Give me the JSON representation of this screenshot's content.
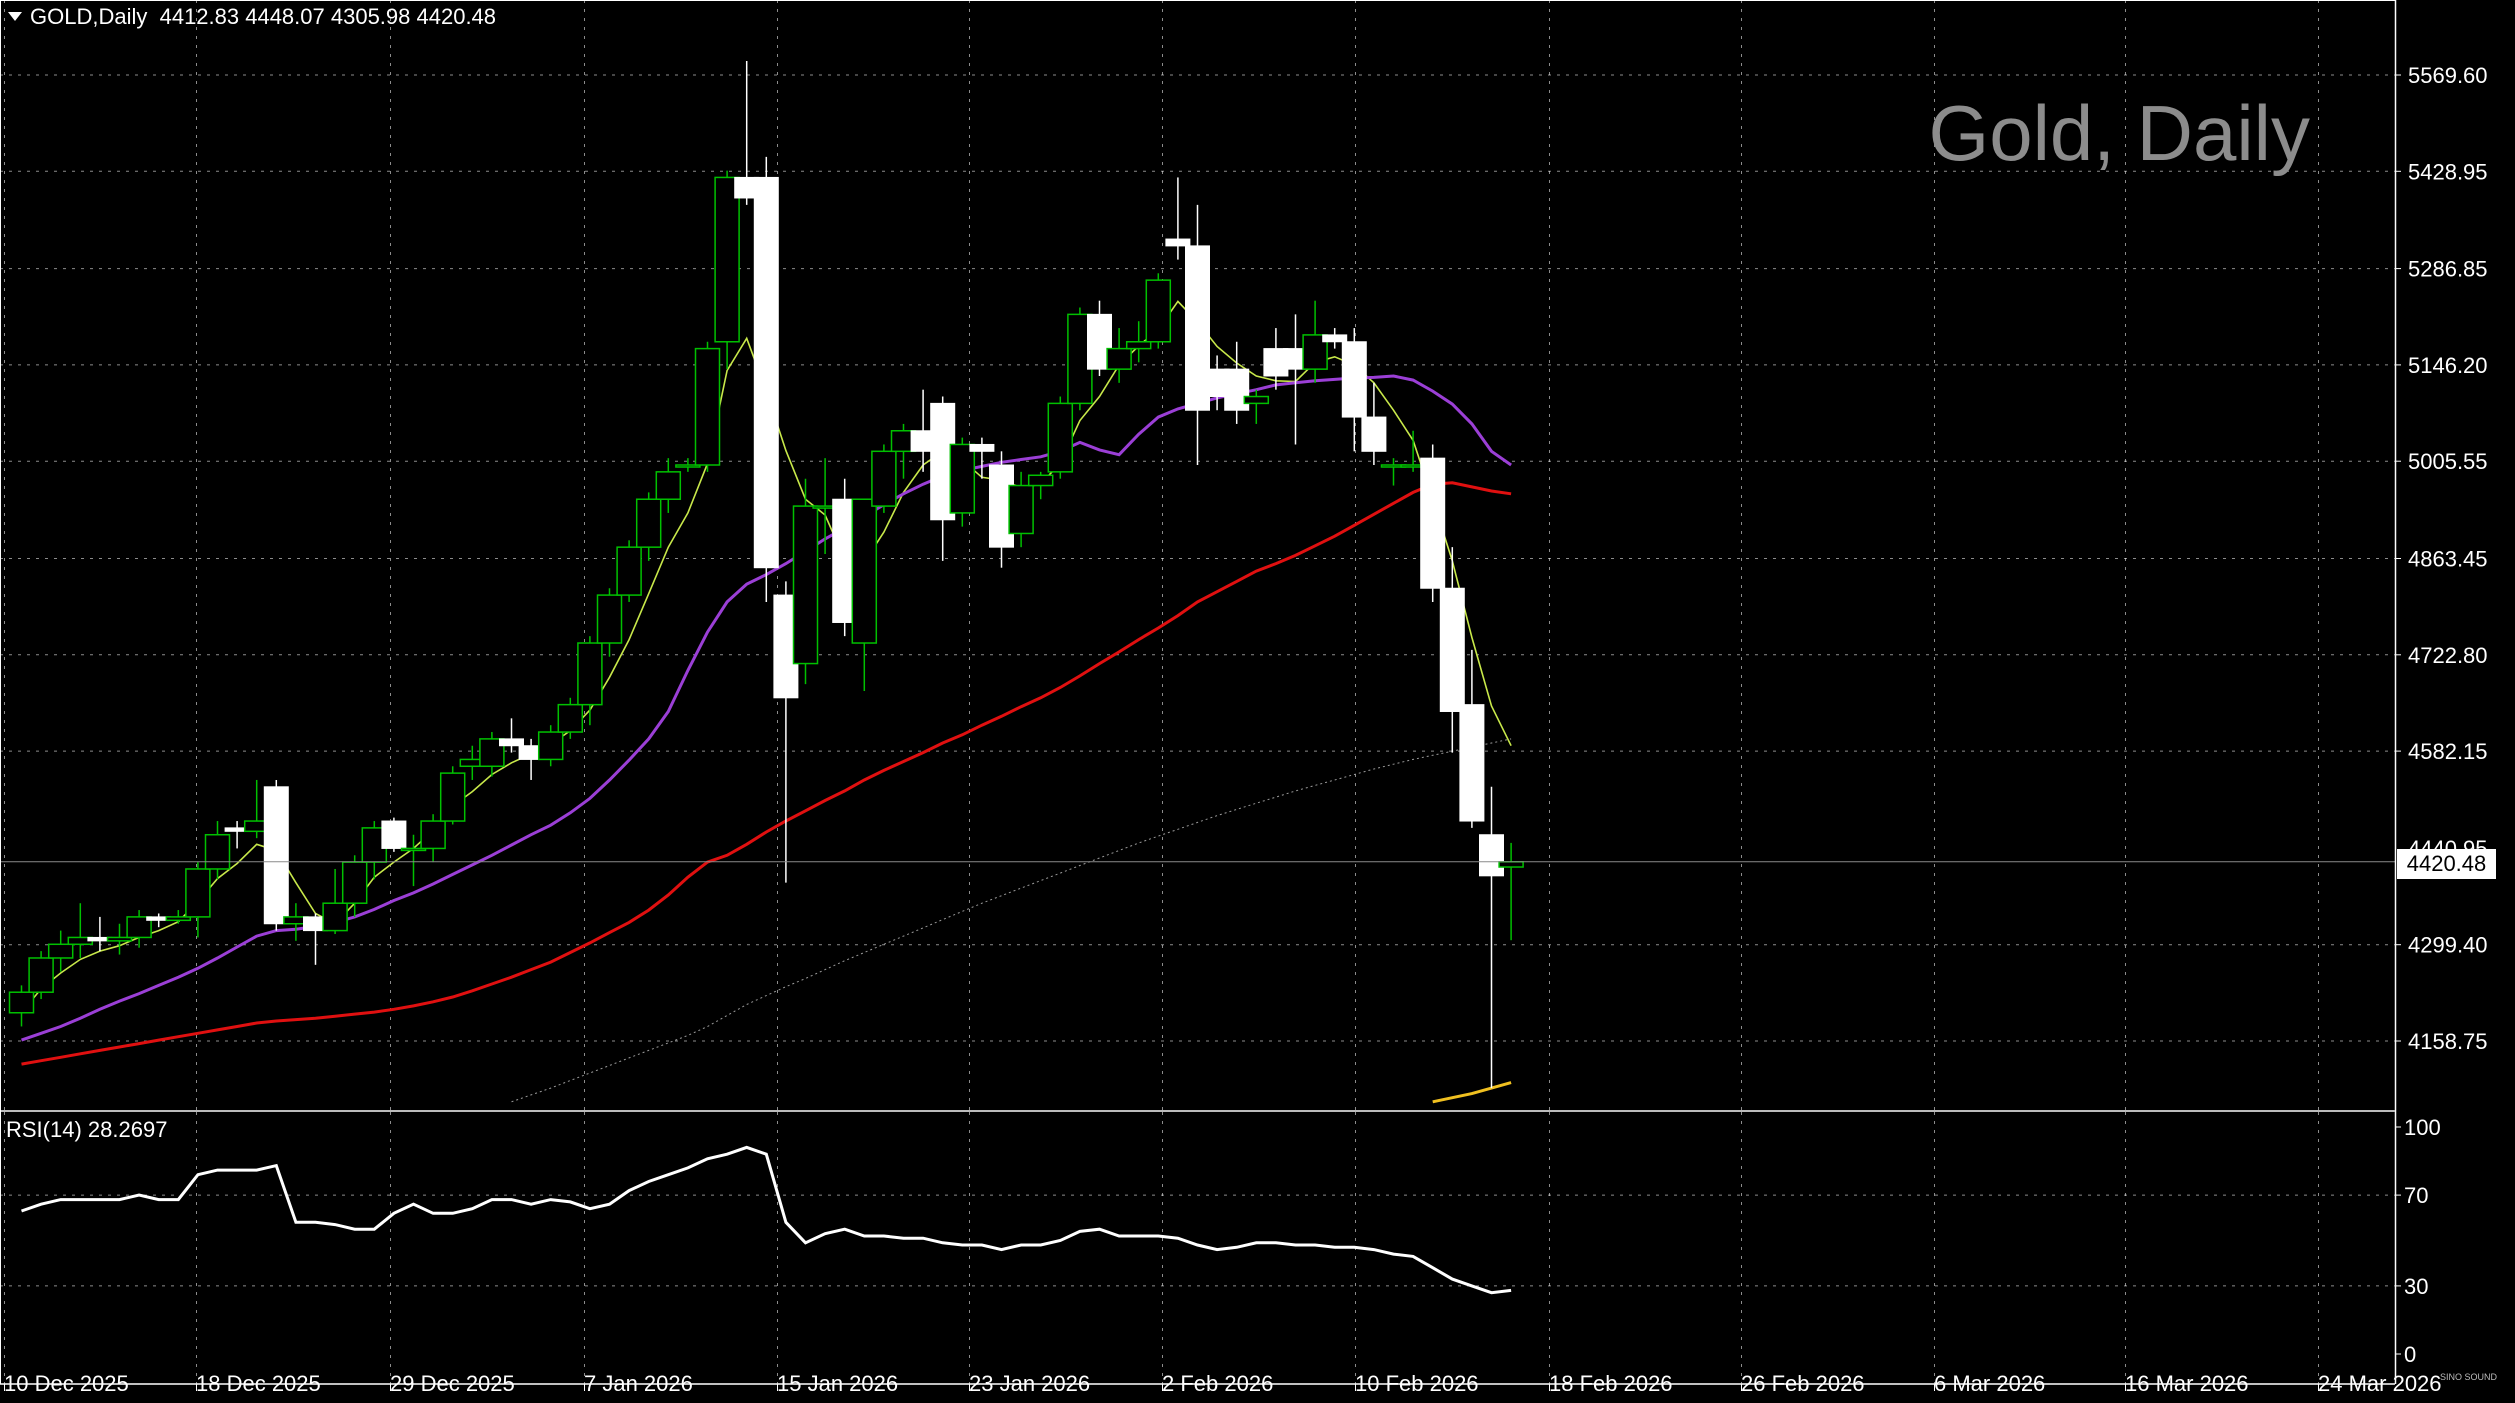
{
  "header": {
    "symbol": "GOLD,Daily",
    "ohlc": "4412.83 4448.07 4305.98 4420.48"
  },
  "watermark": "Gold, Daily",
  "rsi_label": "RSI(14) 28.2697",
  "last_price_tag": "4420.48",
  "brand_text": "SINO SOUND",
  "colors": {
    "background": "#000000",
    "bull_candle": "#00c000",
    "bear_candle": "#ffffff",
    "ma_fast": "#c8e84a",
    "ma_mid": "#9b3fd6",
    "ma_slow": "#e01010",
    "ma_long": "#9a9a9a",
    "ma_yellow": "#f0c020",
    "rsi": "#ffffff",
    "grid": "#ffffff"
  },
  "chart_data": [
    {
      "type": "candlestick",
      "title": "GOLD,Daily",
      "y_ticks": [
        "5569.60",
        "5428.95",
        "5286.85",
        "5146.20",
        "5005.55",
        "4863.45",
        "4722.80",
        "4582.15",
        "4299.40",
        "4158.75"
      ],
      "hidden_tick": "4440.95",
      "x_ticks": [
        "10 Dec 2025",
        "18 Dec 2025",
        "29 Dec 2025",
        "7 Jan 2026",
        "15 Jan 2026",
        "23 Jan 2026",
        "2 Feb 2026",
        "10 Feb 2026",
        "18 Feb 2026",
        "26 Feb 2026",
        "6 Mar 2026",
        "16 Mar 2026",
        "24 Mar 2026"
      ],
      "ylim": [
        4070,
        5630
      ],
      "grid": true,
      "candles": [
        {
          "o": 4200,
          "h": 4240,
          "l": 4180,
          "c": 4230
        },
        {
          "o": 4230,
          "h": 4290,
          "l": 4220,
          "c": 4280
        },
        {
          "o": 4280,
          "h": 4320,
          "l": 4260,
          "c": 4300
        },
        {
          "o": 4300,
          "h": 4360,
          "l": 4280,
          "c": 4310
        },
        {
          "o": 4310,
          "h": 4340,
          "l": 4290,
          "c": 4305
        },
        {
          "o": 4305,
          "h": 4330,
          "l": 4285,
          "c": 4310
        },
        {
          "o": 4310,
          "h": 4350,
          "l": 4295,
          "c": 4340
        },
        {
          "o": 4340,
          "h": 4345,
          "l": 4325,
          "c": 4335
        },
        {
          "o": 4335,
          "h": 4350,
          "l": 4330,
          "c": 4340
        },
        {
          "o": 4340,
          "h": 4420,
          "l": 4310,
          "c": 4410
        },
        {
          "o": 4410,
          "h": 4480,
          "l": 4395,
          "c": 4460
        },
        {
          "o": 4470,
          "h": 4480,
          "l": 4440,
          "c": 4465
        },
        {
          "o": 4465,
          "h": 4540,
          "l": 4455,
          "c": 4480
        },
        {
          "o": 4530,
          "h": 4540,
          "l": 4320,
          "c": 4330
        },
        {
          "o": 4330,
          "h": 4360,
          "l": 4305,
          "c": 4340
        },
        {
          "o": 4340,
          "h": 4345,
          "l": 4270,
          "c": 4320
        },
        {
          "o": 4320,
          "h": 4410,
          "l": 4315,
          "c": 4360
        },
        {
          "o": 4360,
          "h": 4430,
          "l": 4340,
          "c": 4420
        },
        {
          "o": 4420,
          "h": 4480,
          "l": 4395,
          "c": 4470
        },
        {
          "o": 4480,
          "h": 4485,
          "l": 4435,
          "c": 4440
        },
        {
          "o": 4440,
          "h": 4460,
          "l": 4385,
          "c": 4440
        },
        {
          "o": 4440,
          "h": 4490,
          "l": 4420,
          "c": 4480
        },
        {
          "o": 4480,
          "h": 4560,
          "l": 4475,
          "c": 4550
        },
        {
          "o": 4560,
          "h": 4590,
          "l": 4540,
          "c": 4570
        },
        {
          "o": 4560,
          "h": 4610,
          "l": 4545,
          "c": 4600
        },
        {
          "o": 4600,
          "h": 4630,
          "l": 4580,
          "c": 4590
        },
        {
          "o": 4590,
          "h": 4600,
          "l": 4540,
          "c": 4570
        },
        {
          "o": 4570,
          "h": 4620,
          "l": 4560,
          "c": 4610
        },
        {
          "o": 4610,
          "h": 4660,
          "l": 4600,
          "c": 4650
        },
        {
          "o": 4650,
          "h": 4750,
          "l": 4620,
          "c": 4740
        },
        {
          "o": 4740,
          "h": 4820,
          "l": 4720,
          "c": 4810
        },
        {
          "o": 4810,
          "h": 4890,
          "l": 4800,
          "c": 4880
        },
        {
          "o": 4880,
          "h": 4960,
          "l": 4860,
          "c": 4950
        },
        {
          "o": 4950,
          "h": 5010,
          "l": 4930,
          "c": 4990
        },
        {
          "o": 5000,
          "h": 5010,
          "l": 4990,
          "c": 5000
        },
        {
          "o": 5000,
          "h": 5180,
          "l": 4990,
          "c": 5170
        },
        {
          "o": 5180,
          "h": 5430,
          "l": 5140,
          "c": 5420
        },
        {
          "o": 5420,
          "h": 5590,
          "l": 5380,
          "c": 5390
        },
        {
          "o": 5420,
          "h": 5450,
          "l": 4800,
          "c": 4850
        },
        {
          "o": 4810,
          "h": 4830,
          "l": 4390,
          "c": 4660
        },
        {
          "o": 4710,
          "h": 4980,
          "l": 4680,
          "c": 4940
        },
        {
          "o": 4940,
          "h": 5010,
          "l": 4870,
          "c": 4940
        },
        {
          "o": 4950,
          "h": 4980,
          "l": 4750,
          "c": 4770
        },
        {
          "o": 4740,
          "h": 4950,
          "l": 4670,
          "c": 4950
        },
        {
          "o": 4940,
          "h": 5030,
          "l": 4930,
          "c": 5020
        },
        {
          "o": 5020,
          "h": 5060,
          "l": 4980,
          "c": 5050
        },
        {
          "o": 5050,
          "h": 5110,
          "l": 4990,
          "c": 5020
        },
        {
          "o": 5090,
          "h": 5100,
          "l": 4860,
          "c": 4920
        },
        {
          "o": 4930,
          "h": 5040,
          "l": 4910,
          "c": 5030
        },
        {
          "o": 5030,
          "h": 5040,
          "l": 4980,
          "c": 5020
        },
        {
          "o": 5000,
          "h": 5020,
          "l": 4850,
          "c": 4880
        },
        {
          "o": 4900,
          "h": 4990,
          "l": 4880,
          "c": 4970
        },
        {
          "o": 4970,
          "h": 4990,
          "l": 4950,
          "c": 4985
        },
        {
          "o": 4990,
          "h": 5100,
          "l": 4980,
          "c": 5090
        },
        {
          "o": 5090,
          "h": 5230,
          "l": 5080,
          "c": 5220
        },
        {
          "o": 5220,
          "h": 5240,
          "l": 5130,
          "c": 5140
        },
        {
          "o": 5140,
          "h": 5200,
          "l": 5120,
          "c": 5170
        },
        {
          "o": 5170,
          "h": 5210,
          "l": 5150,
          "c": 5180
        },
        {
          "o": 5180,
          "h": 5280,
          "l": 5170,
          "c": 5270
        },
        {
          "o": 5330,
          "h": 5420,
          "l": 5300,
          "c": 5320
        },
        {
          "o": 5320,
          "h": 5380,
          "l": 5000,
          "c": 5080
        },
        {
          "o": 5140,
          "h": 5160,
          "l": 5080,
          "c": 5100
        },
        {
          "o": 5140,
          "h": 5180,
          "l": 5060,
          "c": 5080
        },
        {
          "o": 5090,
          "h": 5110,
          "l": 5060,
          "c": 5100
        },
        {
          "o": 5170,
          "h": 5200,
          "l": 5110,
          "c": 5130
        },
        {
          "o": 5170,
          "h": 5220,
          "l": 5030,
          "c": 5140
        },
        {
          "o": 5140,
          "h": 5240,
          "l": 5120,
          "c": 5190
        },
        {
          "o": 5190,
          "h": 5200,
          "l": 5170,
          "c": 5180
        },
        {
          "o": 5180,
          "h": 5200,
          "l": 5020,
          "c": 5070
        },
        {
          "o": 5070,
          "h": 5120,
          "l": 5000,
          "c": 5020
        },
        {
          "o": 5000,
          "h": 5010,
          "l": 4970,
          "c": 5000
        },
        {
          "o": 5000,
          "h": 5050,
          "l": 4990,
          "c": 5000
        },
        {
          "o": 5010,
          "h": 5030,
          "l": 4800,
          "c": 4820
        },
        {
          "o": 4820,
          "h": 4880,
          "l": 4580,
          "c": 4640
        },
        {
          "o": 4650,
          "h": 4730,
          "l": 4470,
          "c": 4480
        },
        {
          "o": 4460,
          "h": 4530,
          "l": 4090,
          "c": 4400
        },
        {
          "o": 4412.83,
          "h": 4448.07,
          "l": 4305.98,
          "c": 4420.48
        }
      ],
      "series": [
        {
          "name": "",
          "color": "#c8e84a",
          "values": [
            4200,
            4235,
            4258,
            4278,
            4290,
            4298,
            4310,
            4320,
            4333,
            4362,
            4396,
            4418,
            4446,
            4437,
            4390,
            4345,
            4330,
            4360,
            4398,
            4420,
            4440,
            4466,
            4502,
            4523,
            4548,
            4565,
            4578,
            4592,
            4612,
            4642,
            4690,
            4745,
            4812,
            4880,
            4930,
            5002,
            5138,
            5185,
            5108,
            5021,
            4950,
            4927,
            4862,
            4858,
            4902,
            4960,
            5000,
            5020,
            5007,
            4982,
            4978,
            4967,
            4972,
            5003,
            5065,
            5100,
            5146,
            5174,
            5198,
            5239,
            5209,
            5173,
            5149,
            5130,
            5123,
            5122,
            5150,
            5158,
            5146,
            5120,
            5080,
            5036,
            4950,
            4860,
            4748,
            4648,
            4590
          ]
        },
        {
          "name": "",
          "color": "#9b3fd6",
          "values": [
            4160,
            4170,
            4180,
            4192,
            4205,
            4217,
            4228,
            4240,
            4252,
            4265,
            4280,
            4296,
            4312,
            4320,
            4322,
            4326,
            4332,
            4340,
            4351,
            4364,
            4375,
            4388,
            4402,
            4416,
            4430,
            4445,
            4460,
            4474,
            4492,
            4513,
            4540,
            4569,
            4600,
            4640,
            4700,
            4756,
            4800,
            4826,
            4840,
            4856,
            4874,
            4892,
            4908,
            4925,
            4942,
            4958,
            4972,
            4984,
            4992,
            4998,
            5004,
            5008,
            5012,
            5020,
            5033,
            5022,
            5015,
            5045,
            5070,
            5082,
            5090,
            5098,
            5104,
            5110,
            5117,
            5120,
            5123,
            5125,
            5127,
            5128,
            5130,
            5124,
            5108,
            5089,
            5060,
            5020,
            5000
          ]
        },
        {
          "name": "",
          "color": "#e01010",
          "values": [
            4125,
            4130,
            4135,
            4140,
            4145,
            4150,
            4155,
            4160,
            4165,
            4170,
            4175,
            4180,
            4185,
            4188,
            4190,
            4192,
            4195,
            4198,
            4201,
            4205,
            4210,
            4216,
            4223,
            4232,
            4242,
            4252,
            4263,
            4274,
            4288,
            4302,
            4317,
            4332,
            4350,
            4372,
            4398,
            4420,
            4430,
            4446,
            4464,
            4480,
            4495,
            4510,
            4524,
            4540,
            4554,
            4567,
            4580,
            4594,
            4606,
            4620,
            4633,
            4647,
            4660,
            4675,
            4692,
            4710,
            4727,
            4745,
            4762,
            4780,
            4800,
            4815,
            4830,
            4845,
            4856,
            4868,
            4882,
            4896,
            4912,
            4928,
            4944,
            4960,
            4972,
            4974,
            4968,
            4962,
            4958
          ]
        },
        {
          "name": "",
          "color": "#9a9a9a",
          "values": [
            4070,
            4080,
            4090,
            4101,
            4112,
            4123,
            4134,
            4145,
            4156,
            4167,
            4180,
            4196,
            4212,
            4225,
            4238,
            4250,
            4263,
            4276,
            4288,
            4300,
            4312,
            4324,
            4336,
            4348,
            4360,
            4371,
            4382,
            4393,
            4404,
            4415,
            4426,
            4437,
            4448,
            4458,
            4468,
            4478,
            4488,
            4497,
            4506,
            4515,
            4524,
            4532,
            4540,
            4548,
            4556,
            4563,
            4570,
            4576,
            4582,
            4588,
            4594,
            4600
          ]
        },
        {
          "name": "",
          "color": "#f0c020",
          "values": [
            4070,
            4076,
            4082,
            4090,
            4098
          ]
        }
      ]
    },
    {
      "type": "line",
      "title": "RSI(14) 28.2697",
      "y_ticks": [
        "100",
        "70",
        "30",
        "0"
      ],
      "ylim": [
        0,
        100
      ],
      "series": [
        {
          "name": "",
          "color": "#ffffff",
          "values": [
            63,
            66,
            68,
            68,
            68,
            68,
            70,
            68,
            68,
            79,
            81,
            81,
            81,
            83,
            58,
            58,
            57,
            55,
            55,
            62,
            66,
            62,
            62,
            64,
            68,
            68,
            66,
            68,
            67,
            64,
            66,
            72,
            76,
            79,
            82,
            86,
            88,
            91,
            88,
            58,
            49,
            53,
            55,
            52,
            52,
            51,
            51,
            49,
            48,
            48,
            46,
            48,
            48,
            50,
            54,
            55,
            52,
            52,
            52,
            51,
            48,
            46,
            47,
            49,
            49,
            48,
            48,
            47,
            47,
            46,
            44,
            43,
            38,
            33,
            30,
            27,
            28
          ]
        }
      ]
    }
  ]
}
